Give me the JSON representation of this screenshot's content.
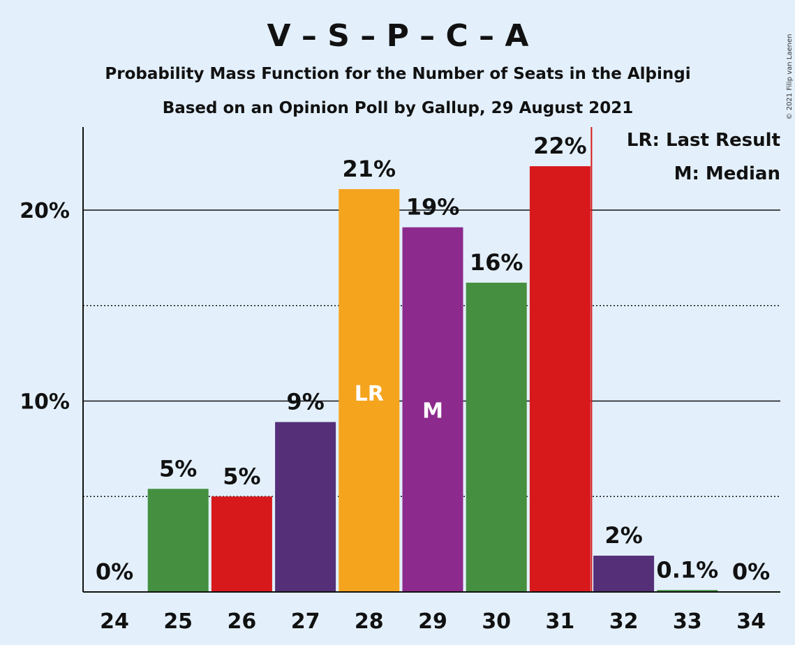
{
  "chart_data": {
    "type": "bar",
    "title": "V – S – P – C – A",
    "subtitle1": "Probability Mass Function for the Number of Seats in the Alþingi",
    "subtitle2": "Based on an Opinion Poll by Gallup, 29 August 2021",
    "categories": [
      "24",
      "25",
      "26",
      "27",
      "28",
      "29",
      "30",
      "31",
      "32",
      "33",
      "34"
    ],
    "values": [
      0,
      5.4,
      5.0,
      8.9,
      21.1,
      19.1,
      16.2,
      22.3,
      1.9,
      0.1,
      0
    ],
    "value_labels": [
      "0%",
      "5%",
      "5%",
      "9%",
      "21%",
      "19%",
      "16%",
      "22%",
      "2%",
      "0.1%",
      "0%"
    ],
    "bar_colors": [
      "#458f40",
      "#458f40",
      "#d7191c",
      "#553079",
      "#f5a41e",
      "#8c2a8d",
      "#458f40",
      "#d7191c",
      "#553079",
      "#458f40",
      "#458f40"
    ],
    "y_ticks": [
      {
        "value": 10,
        "label": "10%"
      },
      {
        "value": 20,
        "label": "20%"
      }
    ],
    "y_minor_gridlines": [
      5,
      15
    ],
    "ylim": [
      0,
      24.3
    ],
    "last_result": {
      "category": "28",
      "label": "LR"
    },
    "median": {
      "category": "29",
      "label": "M"
    },
    "majority_line_after_category": "31",
    "legend": [
      "LR: Last Result",
      "M: Median"
    ],
    "legend_position": "top-right",
    "copyright": "© 2021 Filip van Laenen",
    "colors": {
      "background": "#e3f0fc",
      "majority_line": "#d7191c"
    }
  }
}
